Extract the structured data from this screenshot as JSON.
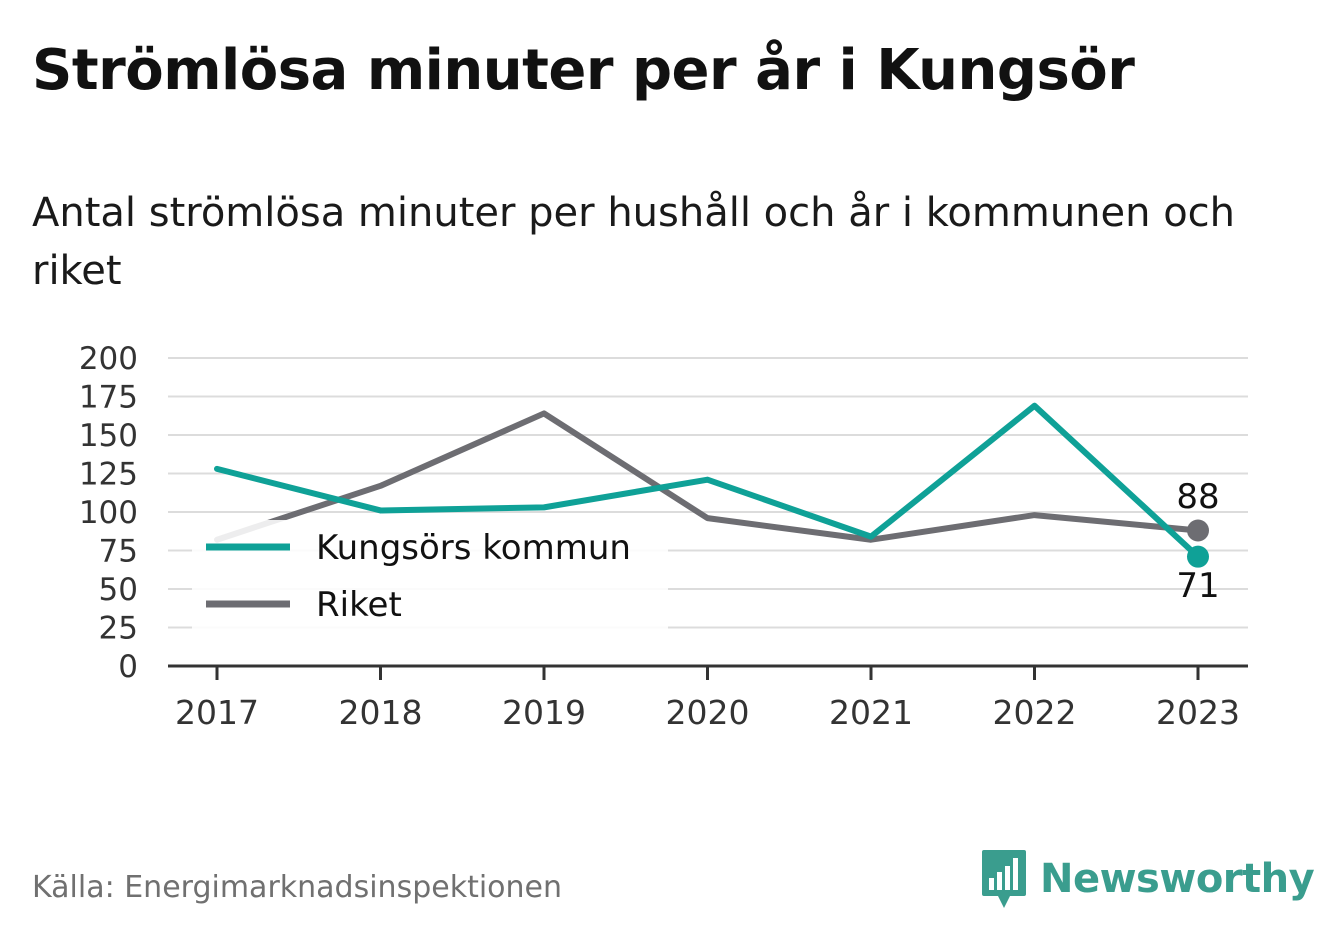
{
  "title": "Strömlösa minuter per år i Kungsör",
  "subtitle": "Antal strömlösa minuter per hushåll och år i kommunen och riket",
  "source": "Källa: Energimarknadsinspektionen",
  "brand": "Newsworthy",
  "colors": {
    "kommun": "#0fa197",
    "riket": "#6d6d72",
    "grid": "#dcdcdc",
    "axis": "#333333",
    "brand": "#3a9d8e"
  },
  "chart_data": {
    "type": "line",
    "categories": [
      "2017",
      "2018",
      "2019",
      "2020",
      "2021",
      "2022",
      "2023"
    ],
    "ylim": [
      0,
      200
    ],
    "yticks": [
      0,
      25,
      50,
      75,
      100,
      125,
      150,
      175,
      200
    ],
    "series": [
      {
        "name": "Kungsörs kommun",
        "color": "#0fa197",
        "values": [
          128,
          101,
          103,
          121,
          84,
          169,
          71
        ]
      },
      {
        "name": "Riket",
        "color": "#6d6d72",
        "values": [
          82,
          117,
          164,
          96,
          82,
          98,
          88
        ]
      }
    ],
    "end_labels": [
      "71",
      "88"
    ],
    "legend_position": "left",
    "grid": true
  }
}
